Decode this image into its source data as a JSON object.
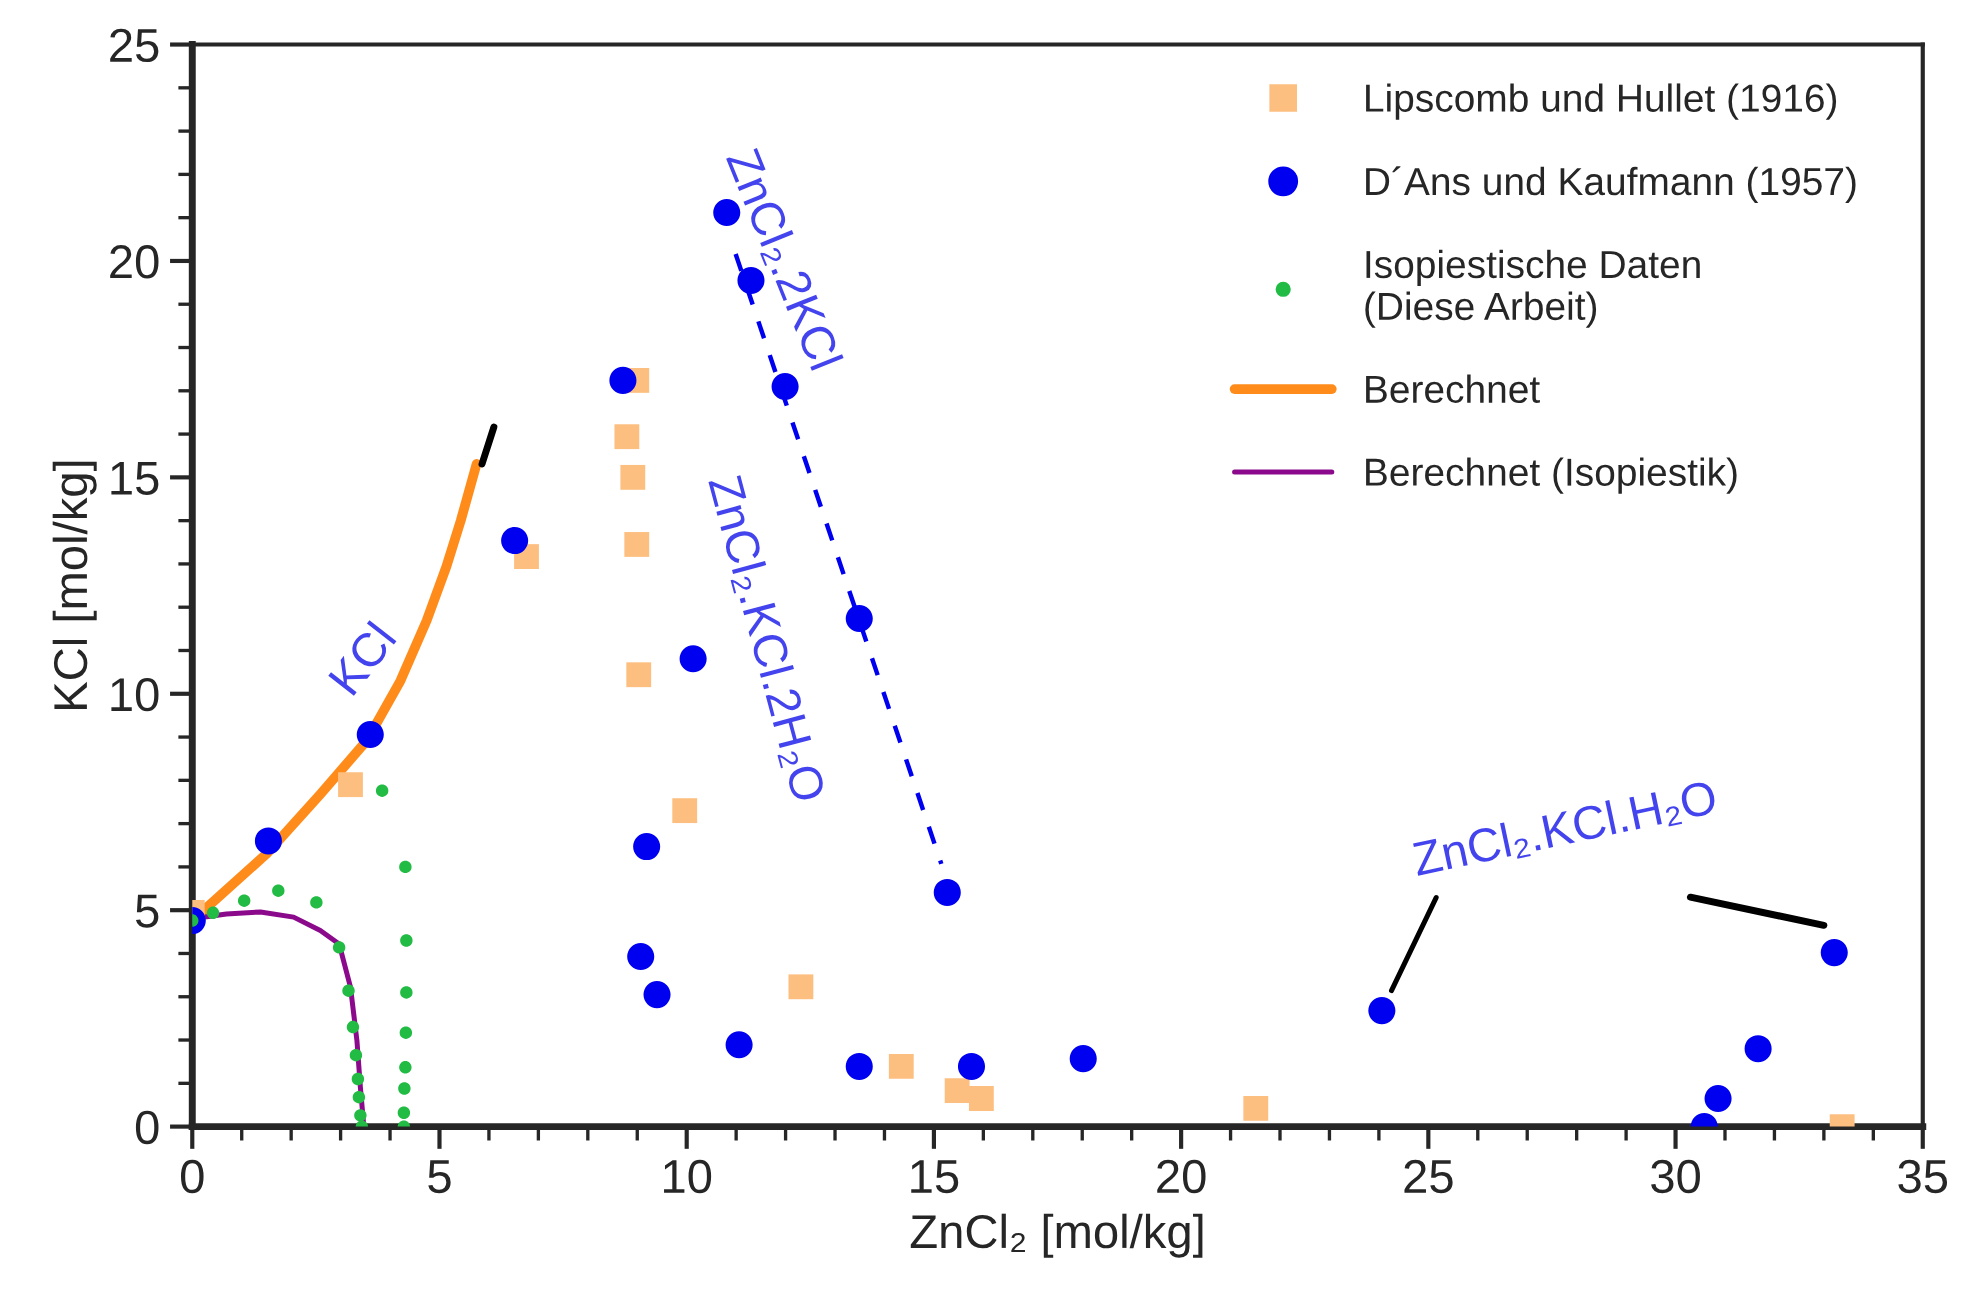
{
  "chart_data": {
    "type": "scatter",
    "xlabel": "ZnCl₂ [mol/kg]",
    "ylabel": "KCl [mol/kg]",
    "xlim": [
      0,
      35
    ],
    "ylim": [
      0,
      25
    ],
    "xticks": [
      0,
      5,
      10,
      15,
      20,
      25,
      30,
      35
    ],
    "yticks": [
      0,
      5,
      10,
      15,
      20,
      25
    ],
    "grid": false,
    "legend": "top right",
    "series": [
      {
        "name": "Lipscomb und Hullet (1916)",
        "marker": "square",
        "color": "#fdbf80",
        "x": [
          0,
          3.2,
          6.76,
          8.99,
          8.79,
          8.91,
          8.99,
          9.03,
          9.96,
          12.31,
          14.34,
          15.47,
          15.96,
          21.51,
          33.37
        ],
        "values": [
          4.95,
          7.9,
          13.17,
          17.24,
          15.94,
          15.0,
          13.45,
          10.44,
          7.3,
          3.23,
          1.39,
          0.83,
          0.65,
          0.42,
          0
        ]
      },
      {
        "name": "D´Ans und Kaufmann (1957)",
        "marker": "circle",
        "color": "#0000f0",
        "x": [
          0,
          1.54,
          3.6,
          6.52,
          8.71,
          10.81,
          11.3,
          11.99,
          13.49,
          10.13,
          9.19,
          9.07,
          9.4,
          11.06,
          13.49,
          15.76,
          18.02,
          15.27,
          24.06,
          33.21,
          31.67,
          30.86,
          30.58
        ],
        "values": [
          4.76,
          6.6,
          9.06,
          13.54,
          17.24,
          21.12,
          19.55,
          17.1,
          11.74,
          10.81,
          6.47,
          3.93,
          3.05,
          1.89,
          1.39,
          1.39,
          1.57,
          5.41,
          2.68,
          4.02,
          1.8,
          0.65,
          0
        ]
      },
      {
        "name": "Isopiestische Daten\n(Diese Arbeit)",
        "marker": "circle",
        "color": "#22bb44",
        "x": [
          0,
          0.42,
          1.05,
          1.74,
          2.51,
          3.84,
          4.31,
          4.33,
          4.33,
          4.32,
          4.31,
          4.29,
          4.28,
          4.28,
          2.97,
          3.16,
          3.25,
          3.31,
          3.35,
          3.37,
          3.4,
          3.43
        ],
        "values": [
          4.76,
          4.94,
          5.22,
          5.45,
          5.18,
          7.76,
          6.0,
          4.3,
          3.1,
          2.17,
          1.37,
          0.88,
          0.32,
          0,
          4.14,
          3.14,
          2.3,
          1.65,
          1.1,
          0.68,
          0.26,
          0
        ]
      },
      {
        "name": "Berechnet",
        "type": "line",
        "line_style": "solid",
        "color": "#ff8c1a",
        "x": [
          0,
          1.5,
          2.59,
          3.53,
          4.21,
          4.74,
          5.14,
          5.43,
          5.75
        ],
        "values": [
          4.76,
          6.3,
          7.68,
          8.92,
          10.3,
          11.69,
          12.94,
          14.0,
          15.31
        ]
      },
      {
        "name": "Berechnet (Isopiestik)",
        "type": "line",
        "line_style": "solid",
        "color": "#8b0a8b",
        "x": [
          0,
          0.69,
          1.38,
          2.05,
          2.59,
          2.97,
          3.2,
          3.33,
          3.4,
          3.47
        ],
        "values": [
          4.8,
          4.91,
          4.96,
          4.84,
          4.53,
          4.22,
          3.22,
          1.99,
          0.91,
          0
        ]
      },
      {
        "type": "line",
        "line_style": "solid",
        "color": "#000000",
        "x": [
          5.86,
          6.1
        ],
        "values": [
          15.31,
          16.16
        ]
      },
      {
        "type": "line",
        "line_style": "dashed",
        "color": "#0000f0",
        "x": [
          10.99,
          15.15
        ],
        "values": [
          20.16,
          6.07
        ]
      },
      {
        "type": "line",
        "line_style": "solid",
        "color": "#000000",
        "x": [
          30.3,
          33.0
        ],
        "values": [
          5.3,
          4.65
        ]
      }
    ],
    "annotations": [
      "KCl",
      "ZnCl₂.2KCl",
      "ZnCl₂.KCl.2H₂O",
      {
        "text": "ZnCl₂.KCl.H₂O",
        "x": 24.06,
        "y": 2.68
      }
    ]
  }
}
